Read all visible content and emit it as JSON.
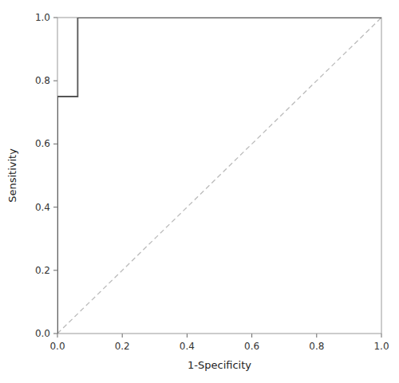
{
  "chart_data": {
    "type": "line",
    "xlabel": "1-Specificity",
    "ylabel": "Sensitivity",
    "series": [
      {
        "x": [
          0.0,
          1.0
        ],
        "values": [
          0.0,
          1.0
        ],
        "color": "#bbbbbb",
        "line_style": "dashed"
      },
      {
        "x": [
          0.0,
          0.0,
          0.0625,
          0.0625,
          0.375,
          0.375,
          1.0
        ],
        "values": [
          0.0,
          0.75,
          0.75,
          1.0,
          1.0,
          1.0,
          1.0
        ],
        "color": "#555555",
        "line_style": "solid"
      }
    ],
    "xlim": [
      0.0,
      1.0
    ],
    "ylim": [
      0.0,
      1.0
    ],
    "xticks": [
      {
        "value": 0.0,
        "label": "0.0"
      },
      0.2,
      0.4,
      0.6,
      0.8,
      {
        "value": 1.0,
        "label": "1.0"
      }
    ],
    "yticks": [
      {
        "value": 0.0,
        "label": "0.0"
      },
      0.2,
      0.4,
      0.6,
      0.8,
      {
        "value": 1.0,
        "label": "1.0"
      }
    ],
    "grid": false
  }
}
